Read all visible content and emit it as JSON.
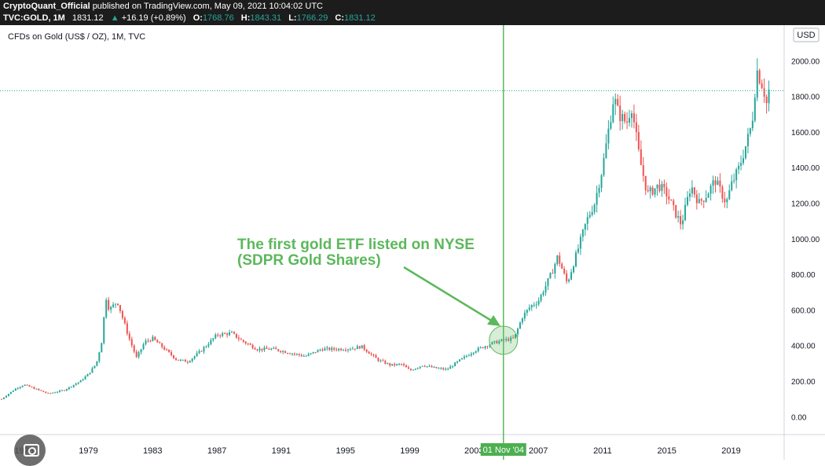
{
  "header": {
    "author": "CryptoQuant_Official",
    "published_text": "published on TradingView.com, May 09, 2021 10:04:02 UTC",
    "symbol": "TVC:GOLD, 1M",
    "price": "1831.12",
    "change": "+16.19 (+0.89%)",
    "open_label": "O:",
    "open": "1768.76",
    "high_label": "H:",
    "high": "1843.31",
    "low_label": "L:",
    "low": "1766.29",
    "close_label": "C:",
    "close": "1831.12"
  },
  "colors": {
    "up": "#26a69a",
    "down": "#ef5350",
    "annotation": "#5cb85c",
    "topbar": "#1c1c1c"
  },
  "icons": {
    "camera": "camera-icon",
    "up_arrow": "triangle-up-icon"
  },
  "chart_data": {
    "type": "line",
    "title": "CFDs on Gold (US$ / OZ), 1M, TVC",
    "currency_label": "USD",
    "xlabel": "",
    "ylabel": "",
    "x_ticks": [
      "1975",
      "1979",
      "1983",
      "1987",
      "1991",
      "1995",
      "1999",
      "2003",
      "2007",
      "2011",
      "2015",
      "2019"
    ],
    "y_ticks": [
      "0.00",
      "200.00",
      "400.00",
      "600.00",
      "800.00",
      "1000.00",
      "1200.00",
      "1400.00",
      "1600.00",
      "1800.00",
      "2000.00"
    ],
    "ylim": [
      -100,
      2200
    ],
    "xlim": [
      1973.5,
      2022.3
    ],
    "current_price_line": 1831.12,
    "marker_date_label": "01 Nov '04",
    "marker_date_value": 2004.83,
    "annotation_text_line1": "The first gold ETF listed on NYSE",
    "annotation_text_line2": "(SDPR Gold Shares)",
    "series": [
      {
        "x": [
          1973.6,
          1974.5,
          1975.0,
          1976.5,
          1977.5,
          1978.5,
          1979.0,
          1979.5,
          1979.9,
          1980.05,
          1980.3,
          1980.8,
          1981.5,
          1982.0,
          1982.5,
          1983.0,
          1983.5,
          1984.5,
          1985.2,
          1986.0,
          1987.0,
          1987.9,
          1988.5,
          1989.5,
          1990.5,
          1991.5,
          1992.5,
          1993.5,
          1994.5,
          1995.5,
          1996.0,
          1997.0,
          1997.8,
          1998.5,
          1999.0,
          1999.8,
          2000.5,
          2001.3,
          2002.0,
          2003.0,
          2004.0,
          2004.83,
          2005.5,
          2006.0,
          2006.5,
          2007.0,
          2007.8,
          2008.2,
          2008.8,
          2009.5,
          2010.0,
          2010.5,
          2011.0,
          2011.7,
          2012.0,
          2012.5,
          2012.8,
          2013.3,
          2013.8,
          2014.5,
          2015.0,
          2015.5,
          2015.9,
          2016.5,
          2017.0,
          2017.5,
          2018.0,
          2018.7,
          2019.0,
          2019.5,
          2020.0,
          2020.3,
          2020.6,
          2021.0,
          2021.3,
          2021.35
        ],
        "values": [
          100,
          160,
          180,
          130,
          150,
          200,
          240,
          300,
          450,
          690,
          600,
          650,
          450,
          330,
          420,
          440,
          400,
          320,
          310,
          370,
          460,
          470,
          430,
          380,
          380,
          360,
          340,
          380,
          380,
          385,
          395,
          320,
          290,
          295,
          260,
          290,
          275,
          265,
          310,
          370,
          410,
          430,
          440,
          560,
          620,
          650,
          800,
          900,
          750,
          950,
          1100,
          1200,
          1400,
          1800,
          1700,
          1650,
          1750,
          1450,
          1250,
          1300,
          1250,
          1150,
          1080,
          1300,
          1200,
          1250,
          1330,
          1200,
          1300,
          1400,
          1550,
          1650,
          1950,
          1850,
          1720,
          1831
        ]
      }
    ]
  }
}
